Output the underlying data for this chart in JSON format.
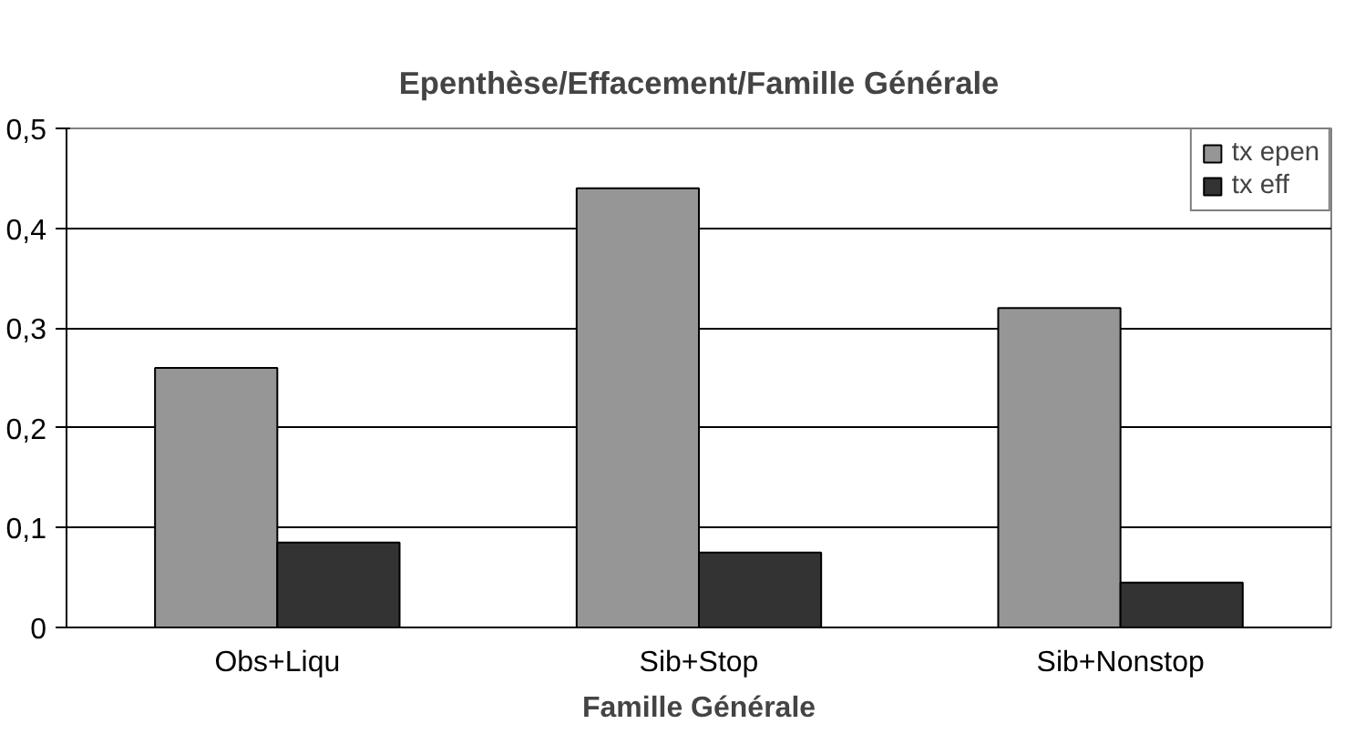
{
  "chart_data": {
    "type": "bar",
    "title": "Epenthèse/Effacement/Famille Générale",
    "xlabel": "Famille Générale",
    "categories": [
      "Obs+Liqu",
      "Sib+Stop",
      "Sib+Nonstop"
    ],
    "series": [
      {
        "name": "tx epen",
        "color": "#969696",
        "values": [
          0.26,
          0.44,
          0.32
        ]
      },
      {
        "name": "tx eff",
        "color": "#333333",
        "values": [
          0.085,
          0.075,
          0.045
        ]
      }
    ],
    "ylim": [
      0,
      0.5
    ],
    "yticks": [
      0,
      {
        "value": 0.1,
        "label": "0,1"
      },
      {
        "value": 0.2,
        "label": "0,2"
      },
      {
        "value": 0.3,
        "label": "0,3"
      },
      {
        "value": 0.4,
        "label": "0,4"
      },
      {
        "value": 0.5,
        "label": "0,5"
      }
    ],
    "grid": "y",
    "legend": "top right"
  }
}
